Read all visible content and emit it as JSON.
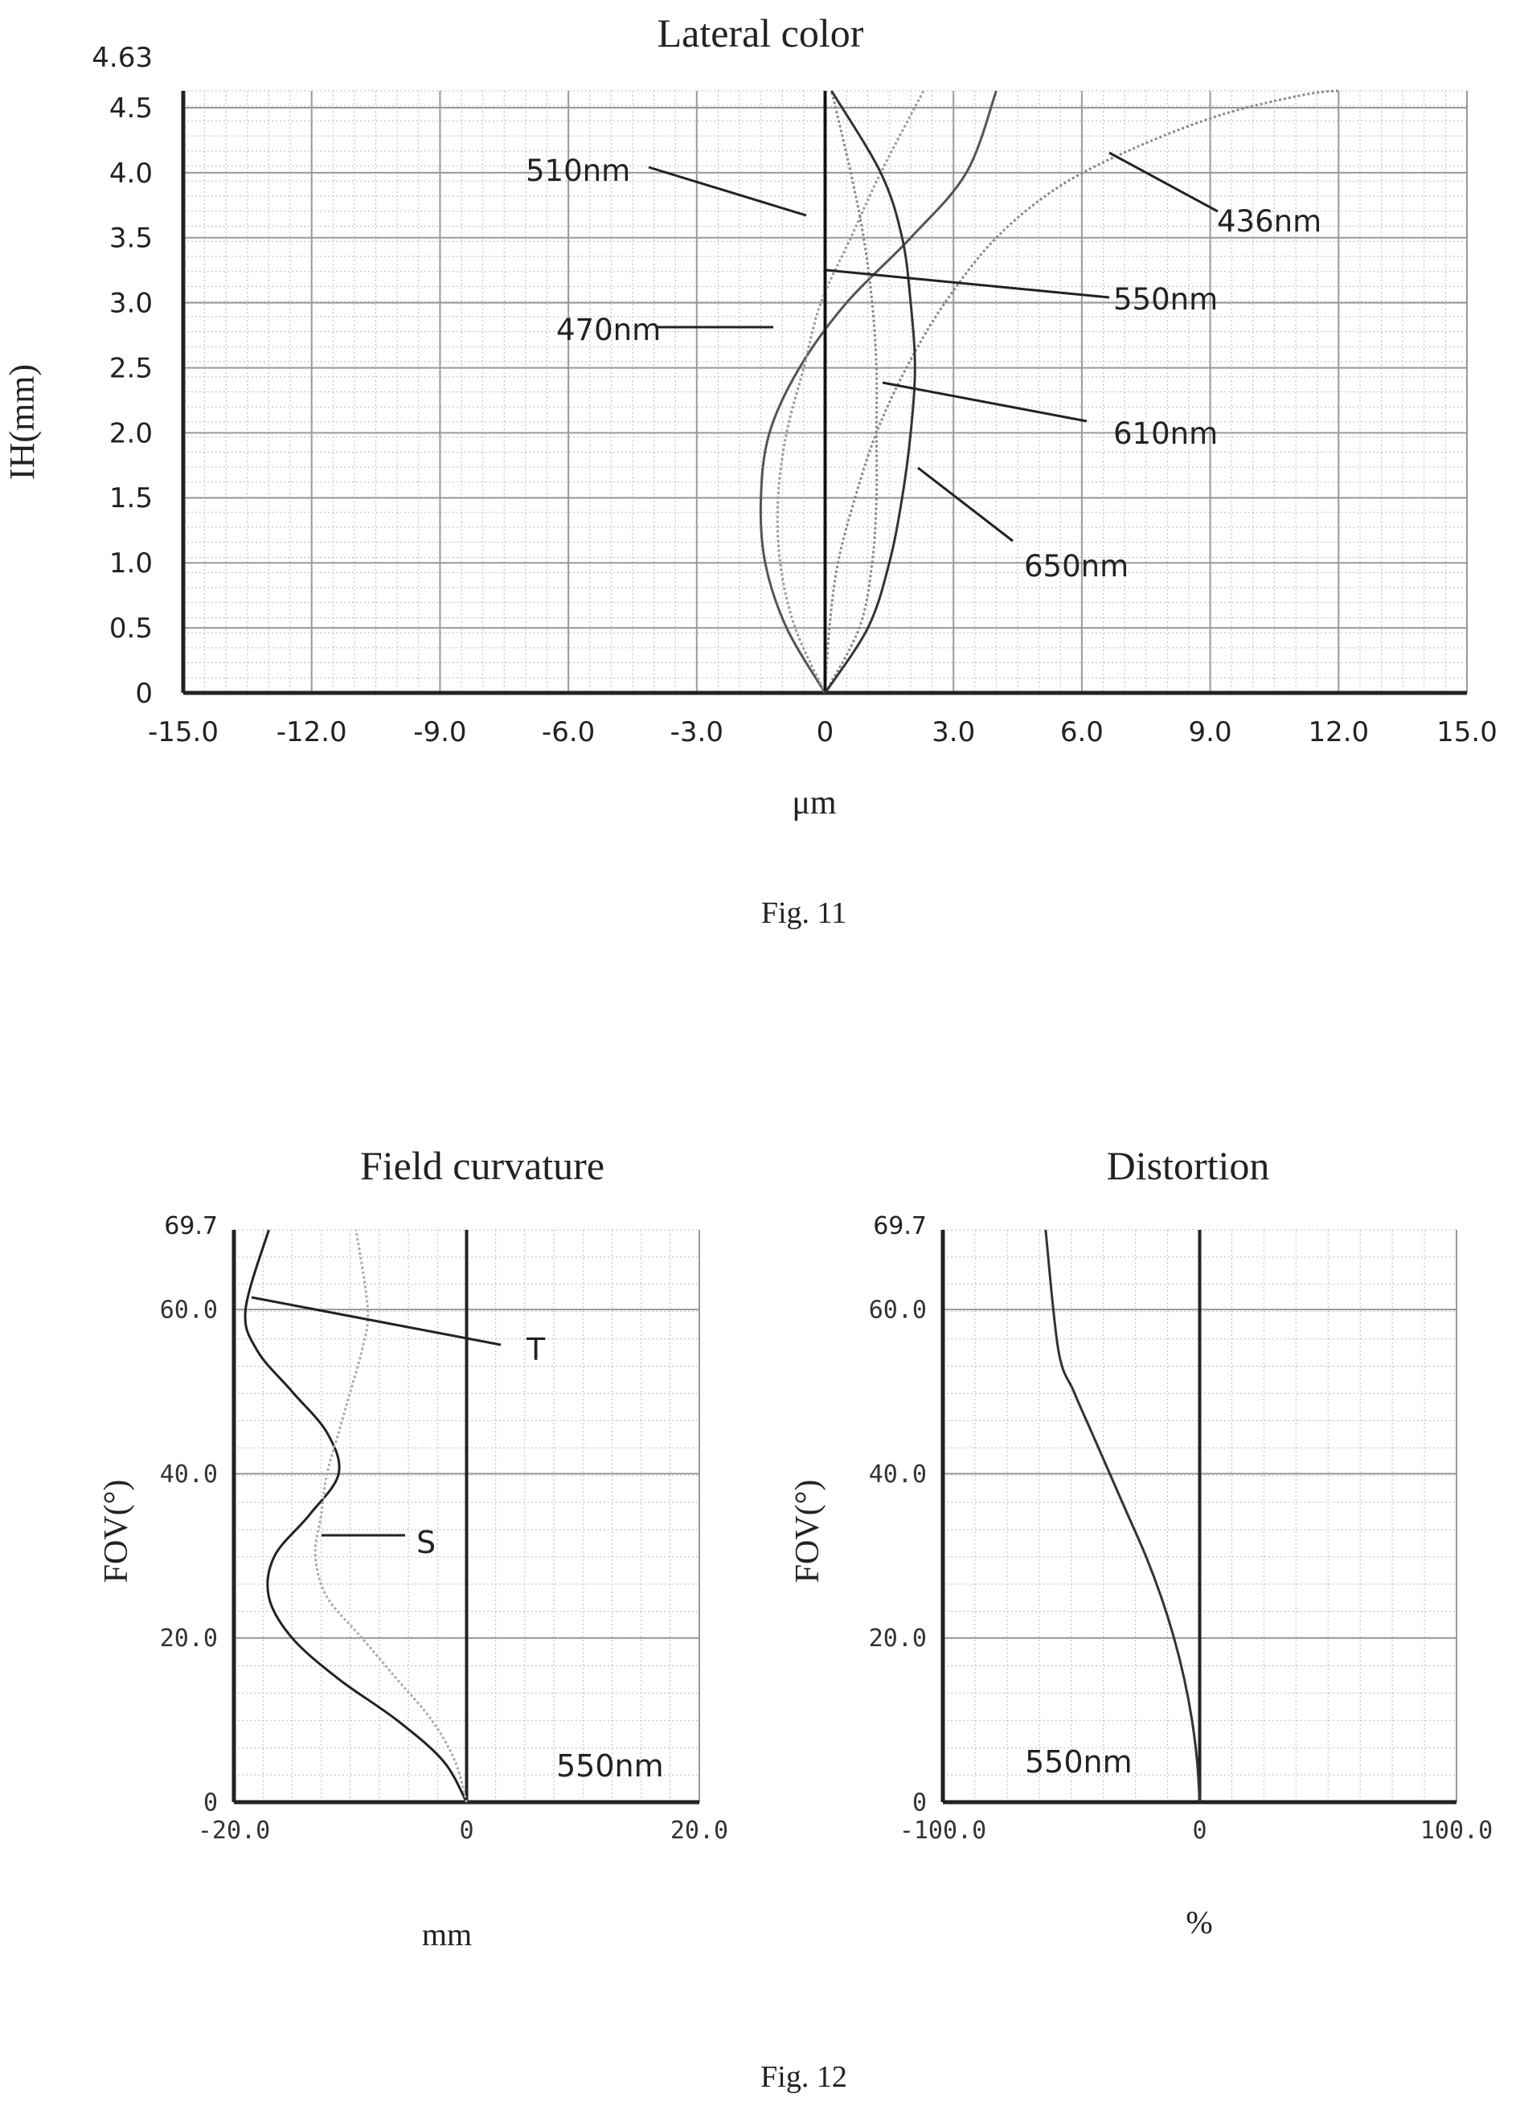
{
  "figures": {
    "fig11_caption": "Fig. 11",
    "fig12_caption": "Fig. 12"
  },
  "chart_data": [
    {
      "type": "line",
      "title": "Lateral color",
      "xlabel": "μm",
      "ylabel": "IH(mm)",
      "xlim": [
        -15.0,
        15.0
      ],
      "ylim": [
        0,
        4.63
      ],
      "y_top_label": "4.63",
      "x_ticks": [
        "-15.0",
        "-12.0",
        "-9.0",
        "-6.0",
        "-3.0",
        "0",
        "3.0",
        "6.0",
        "9.0",
        "12.0",
        "15.0"
      ],
      "y_ticks": [
        "0",
        "0.5",
        "1.0",
        "1.5",
        "2.0",
        "2.5",
        "3.0",
        "3.5",
        "4.0",
        "4.5"
      ],
      "grid": true,
      "series": [
        {
          "name": "436nm",
          "color": "#888888",
          "x": [
            0,
            0.1,
            0.3,
            0.7,
            1.2,
            1.9,
            2.8,
            4.0,
            5.5,
            7.3,
            9.3,
            11.2,
            12.0
          ],
          "y": [
            0,
            0.5,
            1.0,
            1.5,
            2.0,
            2.5,
            3.0,
            3.5,
            3.9,
            4.2,
            4.45,
            4.6,
            4.63
          ]
        },
        {
          "name": "470nm",
          "color": "#555555",
          "x": [
            0,
            -0.9,
            -1.4,
            -1.5,
            -1.3,
            -0.6,
            0.5,
            2.0,
            3.3,
            4.0
          ],
          "y": [
            0,
            0.5,
            1.0,
            1.5,
            2.0,
            2.5,
            3.0,
            3.5,
            4.0,
            4.63
          ]
        },
        {
          "name": "510nm",
          "color": "#999999",
          "x": [
            0,
            -0.7,
            -1.05,
            -1.1,
            -0.9,
            -0.5,
            -0.1,
            0.6,
            1.3,
            2.3
          ],
          "y": [
            0,
            0.5,
            1.0,
            1.5,
            2.0,
            2.5,
            3.0,
            3.5,
            4.0,
            4.63
          ]
        },
        {
          "name": "550nm",
          "color": "#111111",
          "x": [
            0,
            0,
            0,
            0,
            0,
            0,
            0,
            0,
            0,
            0
          ],
          "y": [
            0,
            0.5,
            1.0,
            1.5,
            2.0,
            2.5,
            3.0,
            3.5,
            4.0,
            4.63
          ]
        },
        {
          "name": "610nm",
          "color": "#888888",
          "x": [
            0,
            0.8,
            1.1,
            1.2,
            1.2,
            1.2,
            1.1,
            0.9,
            0.6,
            0.15
          ],
          "y": [
            0,
            0.5,
            1.0,
            1.5,
            2.0,
            2.5,
            3.0,
            3.5,
            4.0,
            4.63
          ]
        },
        {
          "name": "650nm",
          "color": "#333333",
          "x": [
            0,
            1.0,
            1.5,
            1.8,
            2.0,
            2.1,
            2.0,
            1.8,
            1.3,
            0.15
          ],
          "y": [
            0,
            0.5,
            1.0,
            1.5,
            2.0,
            2.5,
            3.0,
            3.5,
            4.0,
            4.63
          ]
        }
      ],
      "annotations": [
        "510nm",
        "436nm",
        "550nm",
        "470nm",
        "610nm",
        "650nm"
      ]
    },
    {
      "type": "line",
      "title": "Field curvature",
      "xlabel": "mm",
      "ylabel": "FOV(°)",
      "xlim": [
        -20.0,
        20.0
      ],
      "ylim": [
        0,
        69.7
      ],
      "y_top_label": "69.7",
      "x_ticks": [
        "-20.0",
        "0",
        "20.0"
      ],
      "y_ticks": [
        "0",
        "20.0",
        "40.0",
        "60.0"
      ],
      "grid": true,
      "note": "550nm",
      "series": [
        {
          "name": "T",
          "color": "#222222",
          "x": [
            0,
            -2,
            -6,
            -11,
            -15,
            -17,
            -16.5,
            -13.5,
            -11,
            -12,
            -15,
            -18,
            -19,
            -17
          ],
          "y": [
            0,
            5,
            10,
            15,
            20,
            25,
            30,
            35,
            40,
            45,
            50,
            55,
            60,
            69.7
          ]
        },
        {
          "name": "S",
          "color": "#aaaaaa",
          "x": [
            0,
            -1,
            -3,
            -6,
            -9,
            -12,
            -13,
            -12.5,
            -12,
            -11,
            -10,
            -9,
            -8.5,
            -9.5
          ],
          "y": [
            0,
            5,
            10,
            15,
            20,
            25,
            30,
            35,
            40,
            45,
            50,
            55,
            60,
            69.7
          ]
        }
      ]
    },
    {
      "type": "line",
      "title": "Distortion",
      "xlabel": "%",
      "ylabel": "FOV(°)",
      "xlim": [
        -100.0,
        100.0
      ],
      "ylim": [
        0,
        69.7
      ],
      "y_top_label": "69.7",
      "x_ticks": [
        "-100.0",
        "0",
        "100.0"
      ],
      "y_ticks": [
        "0",
        "20.0",
        "40.0",
        "60.0"
      ],
      "grid": true,
      "note": "550nm",
      "series": [
        {
          "name": "550nm",
          "color": "#333333",
          "x": [
            0,
            -1,
            -3,
            -6,
            -10,
            -15,
            -21,
            -28,
            -35,
            -42,
            -49,
            -55,
            -60
          ],
          "y": [
            0,
            5,
            10,
            15,
            20,
            25,
            30,
            35,
            40,
            45,
            50,
            55,
            69.7
          ]
        }
      ]
    }
  ]
}
